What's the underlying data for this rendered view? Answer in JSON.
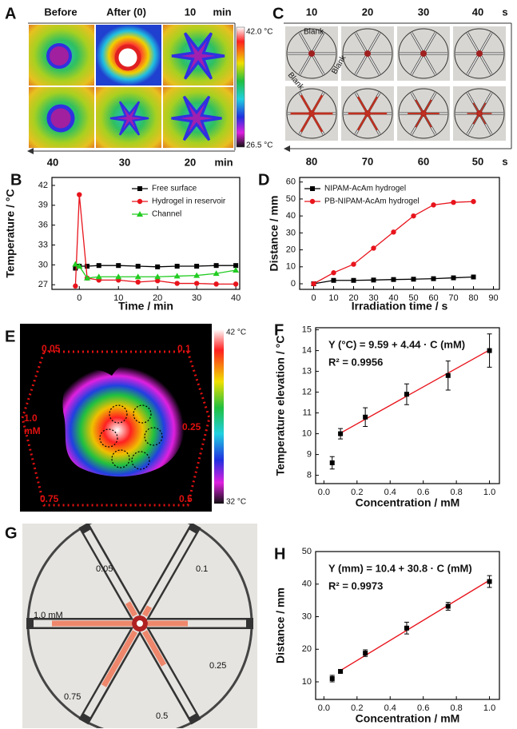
{
  "image_panels": {
    "A": {
      "label": "A",
      "top_labels": [
        "Before",
        "After (0)",
        "10"
      ],
      "top_unit": "min",
      "bottom_labels": [
        "40",
        "30",
        "20"
      ],
      "bottom_unit": "min",
      "scale_max": "42.0 °C",
      "scale_min": "26.5 °C"
    },
    "C": {
      "label": "C",
      "top_labels": [
        "10",
        "20",
        "30",
        "40"
      ],
      "top_unit": "s",
      "bottom_labels": [
        "80",
        "70",
        "60",
        "50"
      ],
      "bottom_unit": "s",
      "blank_labels": [
        "Blank",
        "Blank",
        "Blank"
      ]
    },
    "E": {
      "label": "E",
      "labels": [
        "0.05",
        "0.1",
        "0.25",
        "0.5",
        "0.75",
        "1.0"
      ],
      "left_unit": "mM",
      "scale_max": "42 °C",
      "scale_min": "32 °C"
    },
    "G": {
      "label": "G",
      "labels": [
        "0.05",
        "0.1",
        "0.25",
        "0.5",
        "0.75",
        "1.0 mM"
      ]
    }
  },
  "chart_data": [
    {
      "type": "line",
      "panel": "B",
      "xlabel": "Time / min",
      "ylabel": "Temperature / °C",
      "x": [
        -1,
        0,
        2,
        5,
        10,
        15,
        20,
        25,
        30,
        35,
        40
      ],
      "series": [
        {
          "name": "Free surface",
          "color": "#000000",
          "marker": "square",
          "values": [
            29.5,
            29.8,
            29.8,
            29.9,
            29.9,
            29.8,
            29.7,
            29.8,
            29.8,
            29.9,
            29.9
          ]
        },
        {
          "name": "Hydrogel in reservoir",
          "color": "#e8141c",
          "marker": "circle",
          "values": [
            26.8,
            40.6,
            28,
            27.7,
            27.7,
            27.4,
            27.6,
            27.2,
            27.2,
            27.1,
            27.1
          ]
        },
        {
          "name": "Channel",
          "color": "#22cc22",
          "marker": "triangle",
          "values": [
            30.1,
            29.8,
            28,
            28.2,
            28.2,
            28.2,
            28.2,
            28.3,
            28.4,
            28.7,
            29.2
          ]
        }
      ],
      "xlim": [
        -7,
        41
      ],
      "xticks": [
        0,
        10,
        20,
        30,
        40
      ],
      "ylim": [
        26.3,
        43.2
      ],
      "yticks": [
        27,
        30,
        33,
        36,
        39,
        42
      ],
      "legend": "upper right"
    },
    {
      "type": "line",
      "panel": "D",
      "xlabel": "Irradiation time / s",
      "ylabel": "Distance / mm",
      "x": [
        0,
        10,
        20,
        30,
        40,
        50,
        60,
        70,
        80
      ],
      "series": [
        {
          "name": "NIPAM-AcAm hydrogel",
          "color": "#000000",
          "marker": "square",
          "values": [
            0,
            2,
            2,
            2.2,
            2.5,
            2.7,
            3,
            3.5,
            4
          ]
        },
        {
          "name": "PB-NIPAM-AcAm hydrogel",
          "color": "#e8141c",
          "marker": "circle",
          "values": [
            0,
            6.5,
            11.5,
            21,
            30.5,
            40,
            46.5,
            48,
            48.5
          ]
        }
      ],
      "xlim": [
        -7,
        93
      ],
      "xticks": [
        0,
        10,
        20,
        30,
        40,
        50,
        60,
        70,
        80,
        90
      ],
      "ylim": [
        -3.3,
        62.7
      ],
      "yticks": [
        0,
        10,
        20,
        30,
        40,
        50,
        60
      ],
      "legend": "upper left"
    },
    {
      "type": "scatter",
      "panel": "F",
      "xlabel": "Concentration / mM",
      "ylabel": "Temperature elevation / °C",
      "x": [
        0.05,
        0.1,
        0.25,
        0.5,
        0.75,
        1.0
      ],
      "values": [
        8.6,
        10,
        10.8,
        11.9,
        12.8,
        14.0
      ],
      "errors": [
        0.3,
        0.25,
        0.45,
        0.5,
        0.7,
        0.8
      ],
      "color": "#000000",
      "fit": {
        "x": [
          0.1,
          1.0
        ],
        "values": [
          10.03,
          14.03
        ],
        "color": "#e8141c"
      },
      "annotations": [
        "Y (°C) = 9.59 + 4.44 · C (mM)",
        "R² = 0.9956"
      ],
      "xlim": [
        -0.05,
        1.06
      ],
      "xticks": [
        {
          "value": 0,
          "label": "0.0"
        },
        0.2,
        0.4,
        0.6,
        0.8,
        {
          "value": 1,
          "label": "1.0"
        }
      ],
      "ylim": [
        7.6,
        15.1
      ],
      "yticks": [
        8,
        9,
        10,
        11,
        12,
        13,
        14,
        15
      ]
    },
    {
      "type": "scatter",
      "panel": "H",
      "xlabel": "Concentration / mM",
      "ylabel": "Distance / mm",
      "x": [
        0.05,
        0.1,
        0.25,
        0.5,
        0.75,
        1.0
      ],
      "values": [
        11,
        13.2,
        18.8,
        26.5,
        33.2,
        40.8
      ],
      "errors": [
        1,
        0.5,
        1,
        1.8,
        1.2,
        1.8
      ],
      "color": "#000000",
      "fit": {
        "x": [
          0.1,
          1.0
        ],
        "values": [
          13.48,
          41.2
        ],
        "color": "#e8141c"
      },
      "annotations": [
        "Y (mm) = 10.4 + 30.8 · C (mM)",
        "R² = 0.9973"
      ],
      "xlim": [
        -0.05,
        1.06
      ],
      "xticks": [
        {
          "value": 0,
          "label": "0.0"
        },
        0.2,
        0.4,
        0.6,
        0.8,
        {
          "value": 1,
          "label": "1.0"
        }
      ],
      "ylim": [
        4.6,
        50
      ],
      "yticks": [
        10,
        20,
        30,
        40,
        50
      ]
    }
  ]
}
